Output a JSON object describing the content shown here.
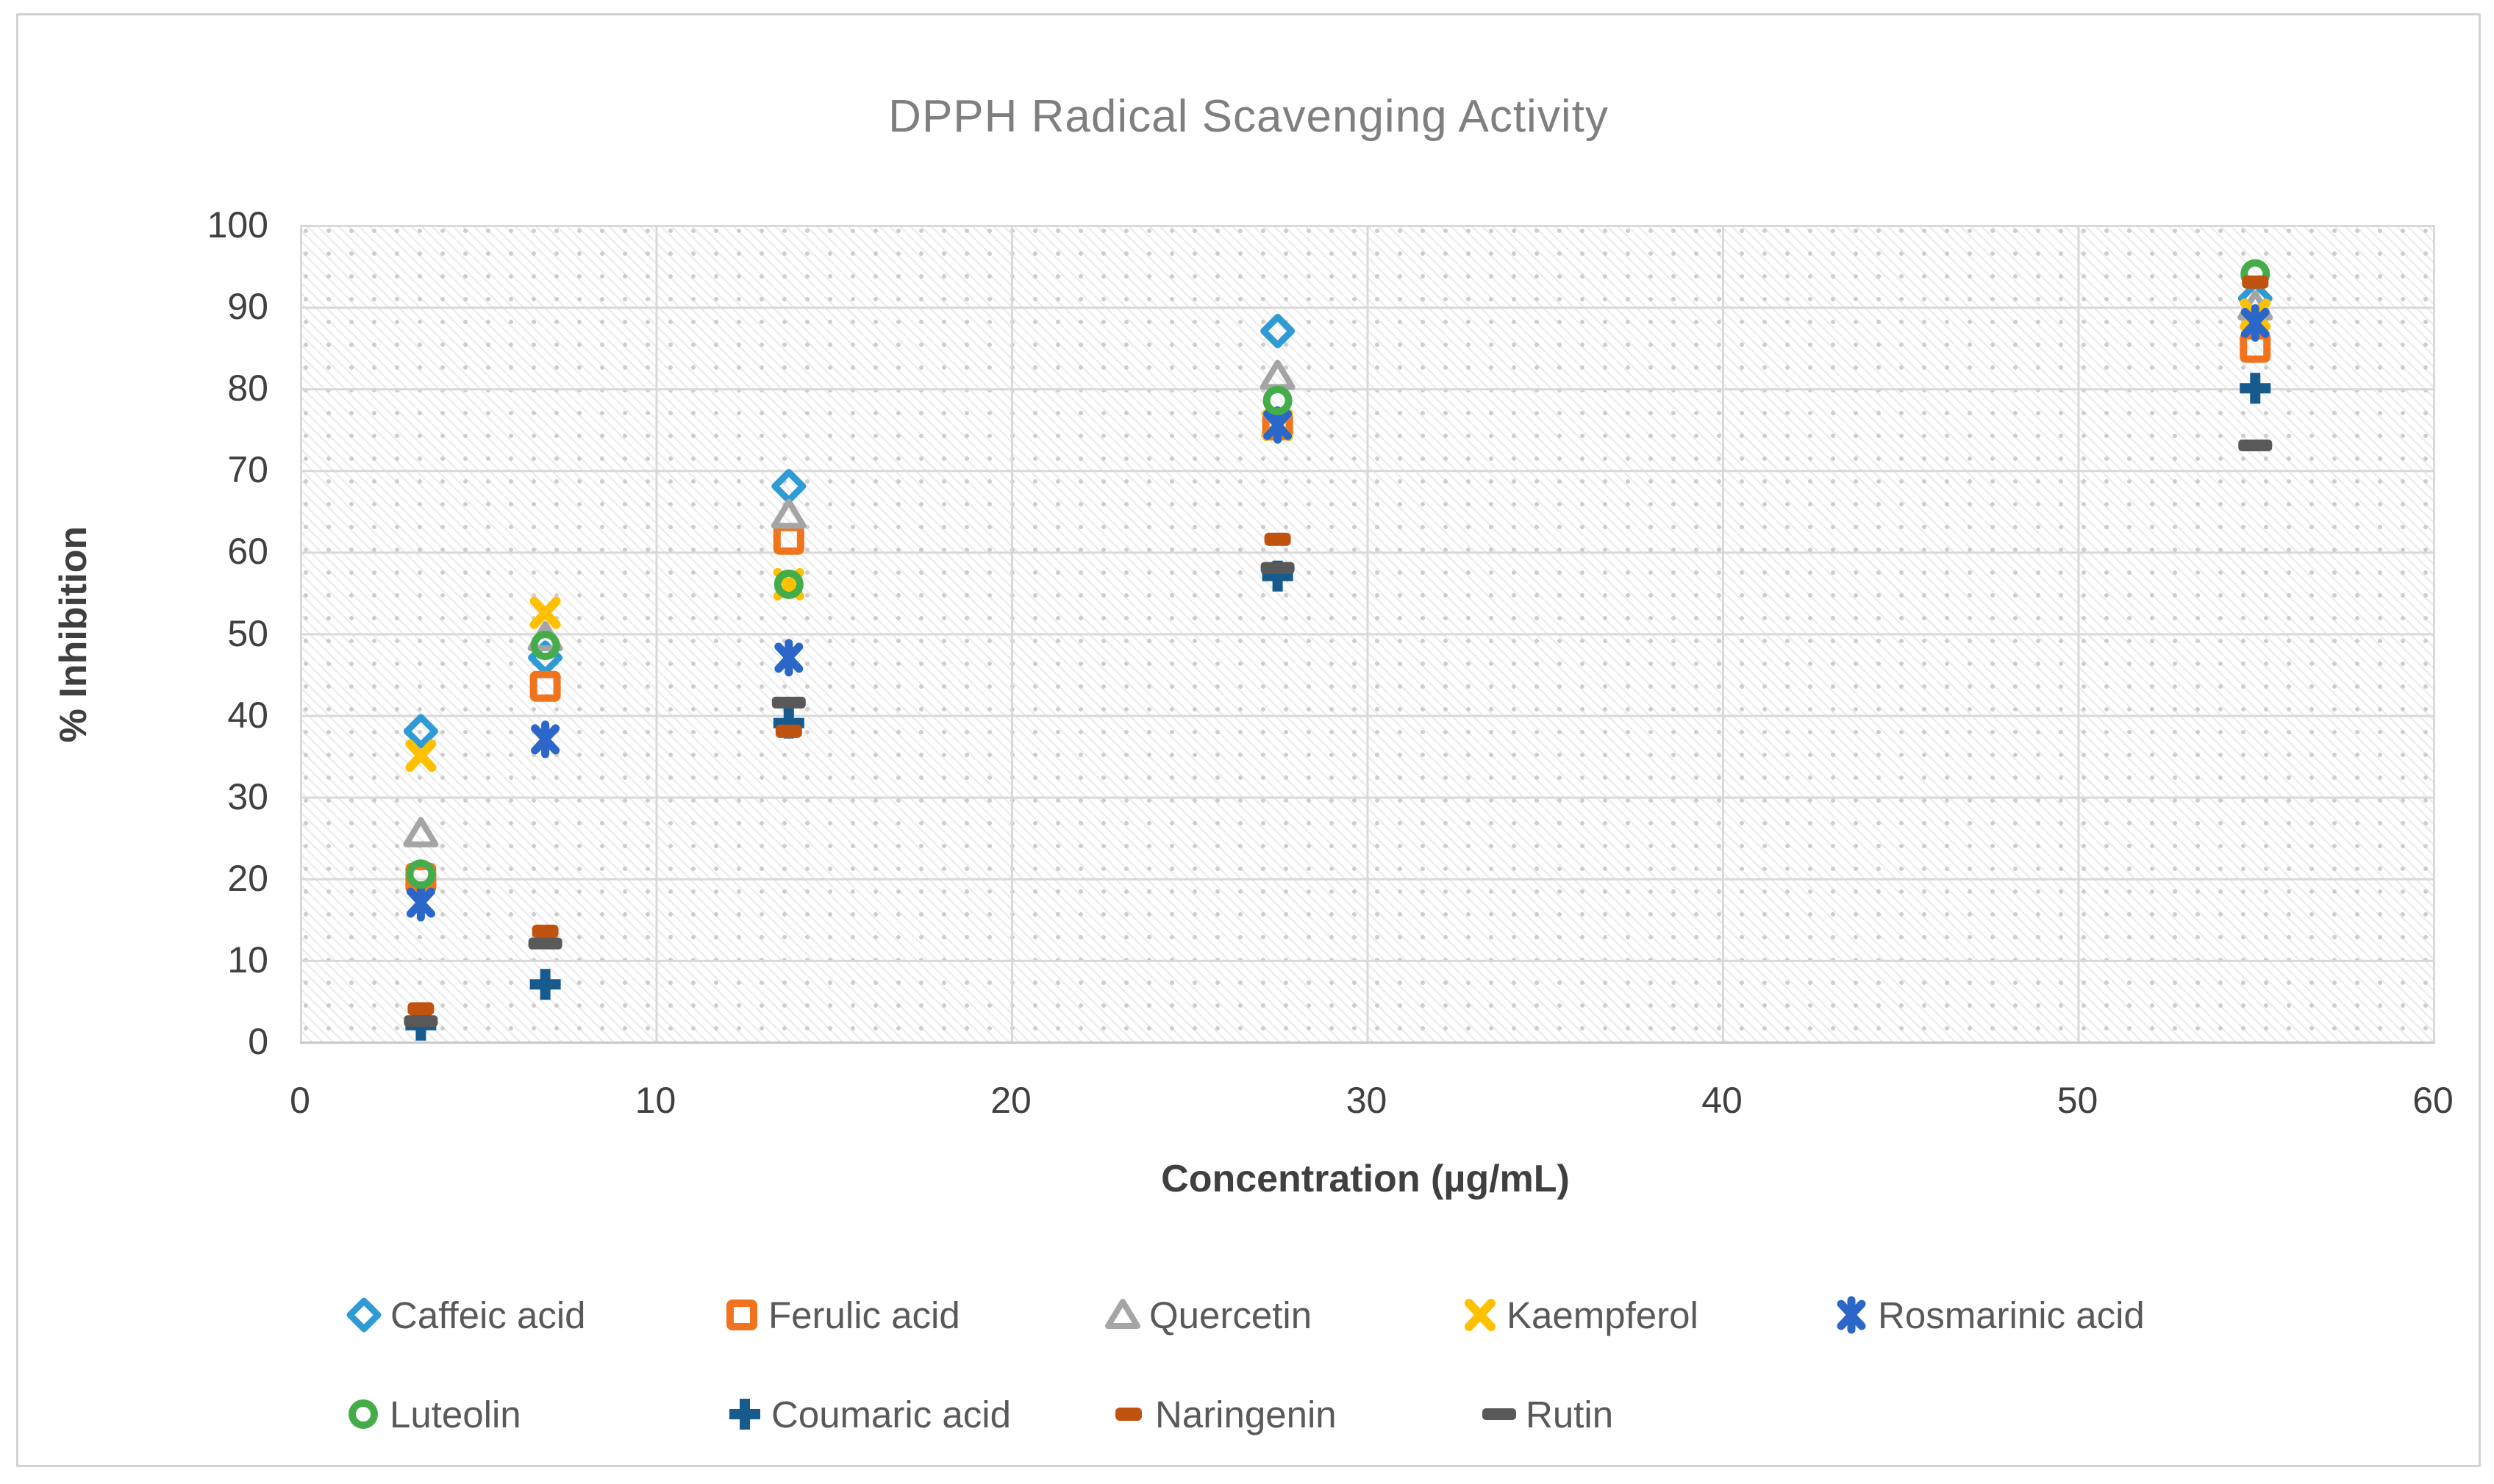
{
  "chart": {
    "title": "DPPH Radical Scavenging Activity",
    "x_axis": {
      "title": "Concentration (µg/mL)",
      "ticks": [
        0,
        10,
        20,
        30,
        40,
        50,
        60
      ]
    },
    "y_axis": {
      "title": "% Inhibition",
      "ticks": [
        0,
        10,
        20,
        30,
        40,
        50,
        60,
        70,
        80,
        90,
        100
      ]
    }
  },
  "chart_data": {
    "type": "scatter",
    "title": "DPPH Radical Scavenging Activity",
    "xlabel": "Concentration (µg/mL)",
    "ylabel": "% Inhibition",
    "xlim": [
      0,
      60
    ],
    "ylim": [
      0,
      100
    ],
    "grid": true,
    "plot_background": "diagonal-hatch-pattern",
    "legend_position": "bottom",
    "x": [
      3.4,
      6.9,
      13.75,
      27.5,
      55
    ],
    "series": [
      {
        "name": "Caffeic acid",
        "marker": "diamond",
        "color": "#2E9BD5",
        "values": [
          38,
          47,
          68,
          87,
          91
        ]
      },
      {
        "name": "Ferulic acid",
        "marker": "square",
        "color": "#F1731D",
        "values": [
          20,
          43.5,
          61.5,
          75.5,
          85
        ]
      },
      {
        "name": "Quercetin",
        "marker": "triangle",
        "color": "#A5A5A5",
        "values": [
          25.5,
          49.5,
          64.5,
          81.5,
          90
        ]
      },
      {
        "name": "Kaempferol",
        "marker": "x",
        "color": "#FFC000",
        "values": [
          35,
          52.5,
          56,
          75.5,
          89
        ]
      },
      {
        "name": "Rosmarinic acid",
        "marker": "star",
        "color": "#2B66C9",
        "values": [
          17,
          37,
          47,
          75.5,
          88
        ]
      },
      {
        "name": "Luteolin",
        "marker": "circle",
        "color": "#44AD4A",
        "values": [
          20.5,
          48.5,
          56,
          78.5,
          94
        ]
      },
      {
        "name": "Coumaric acid",
        "marker": "plus",
        "color": "#175A8E",
        "values": [
          2,
          7,
          39,
          57,
          80
        ]
      },
      {
        "name": "Naringenin",
        "marker": "dash-short",
        "color": "#C05310",
        "values": [
          4,
          13.5,
          38,
          61.5,
          93
        ]
      },
      {
        "name": "Rutin",
        "marker": "dash-long",
        "color": "#595959",
        "values": [
          2.5,
          12,
          41.5,
          58,
          73
        ]
      }
    ]
  }
}
